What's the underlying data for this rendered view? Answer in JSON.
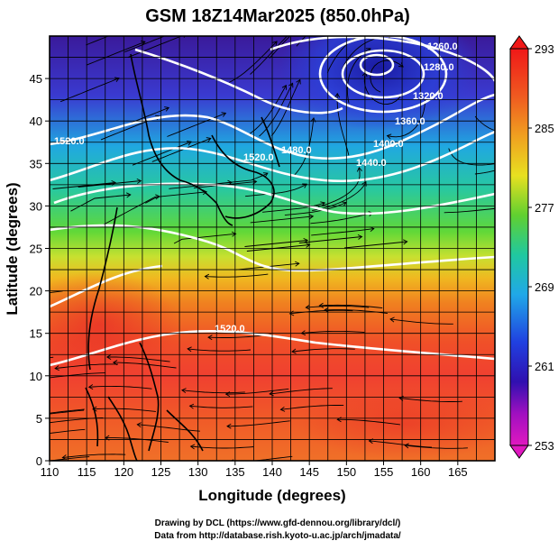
{
  "chart_data": {
    "type": "heatmap",
    "title": "GSM 18Z14Mar2025 (850.0hPa)",
    "xlabel": "Longitude (degrees)",
    "ylabel": "Latitude  (degrees)",
    "xlim": [
      110,
      170
    ],
    "ylim": [
      0,
      50
    ],
    "x_ticks": [
      "110",
      "115",
      "120",
      "125",
      "130",
      "135",
      "140",
      "145",
      "150",
      "155",
      "160",
      "165"
    ],
    "y_ticks": [
      "0",
      "5",
      "10",
      "15",
      "20",
      "25",
      "30",
      "35",
      "40",
      "45"
    ],
    "colorbar": {
      "range": [
        253,
        293
      ],
      "ticks": [
        "293",
        "285",
        "277",
        "269",
        "261",
        "253"
      ]
    },
    "contour_labels": [
      "1520.0",
      "1480.0",
      "1440.0",
      "1400.0",
      "1360.0",
      "1320.0",
      "1280.0",
      "1260.0",
      "1520.0",
      "1520.0"
    ],
    "grid": true,
    "overlays": [
      "coastlines",
      "streamlines",
      "white height contours"
    ]
  },
  "credits": {
    "line1": "Drawing by DCL (https://www.gfd-dennou.org/library/dcl/)",
    "line2": "Data from http://database.rish.kyoto-u.ac.jp/arch/jmadata/"
  }
}
